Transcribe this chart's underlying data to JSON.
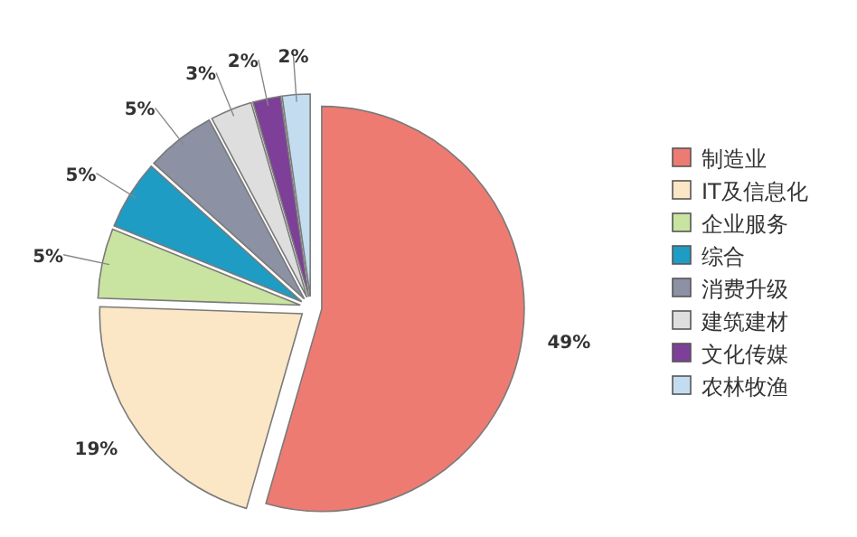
{
  "chart_data": {
    "type": "pie",
    "categories": [
      "制造业",
      "IT及信息化",
      "企业服务",
      "综合",
      "消费升级",
      "建筑建材",
      "文化传媒",
      "农林牧渔"
    ],
    "values": [
      49,
      19,
      5,
      5,
      5,
      3,
      2,
      2
    ],
    "value_labels": [
      "49%",
      "19%",
      "5%",
      "5%",
      "5%",
      "3%",
      "2%",
      "2%"
    ],
    "colors": [
      "#ee7b72",
      "#fbe6c6",
      "#c9e3a0",
      "#1e9cc4",
      "#8c91a3",
      "#dedede",
      "#7d3f98",
      "#c3dcf0"
    ],
    "legend": "right"
  }
}
